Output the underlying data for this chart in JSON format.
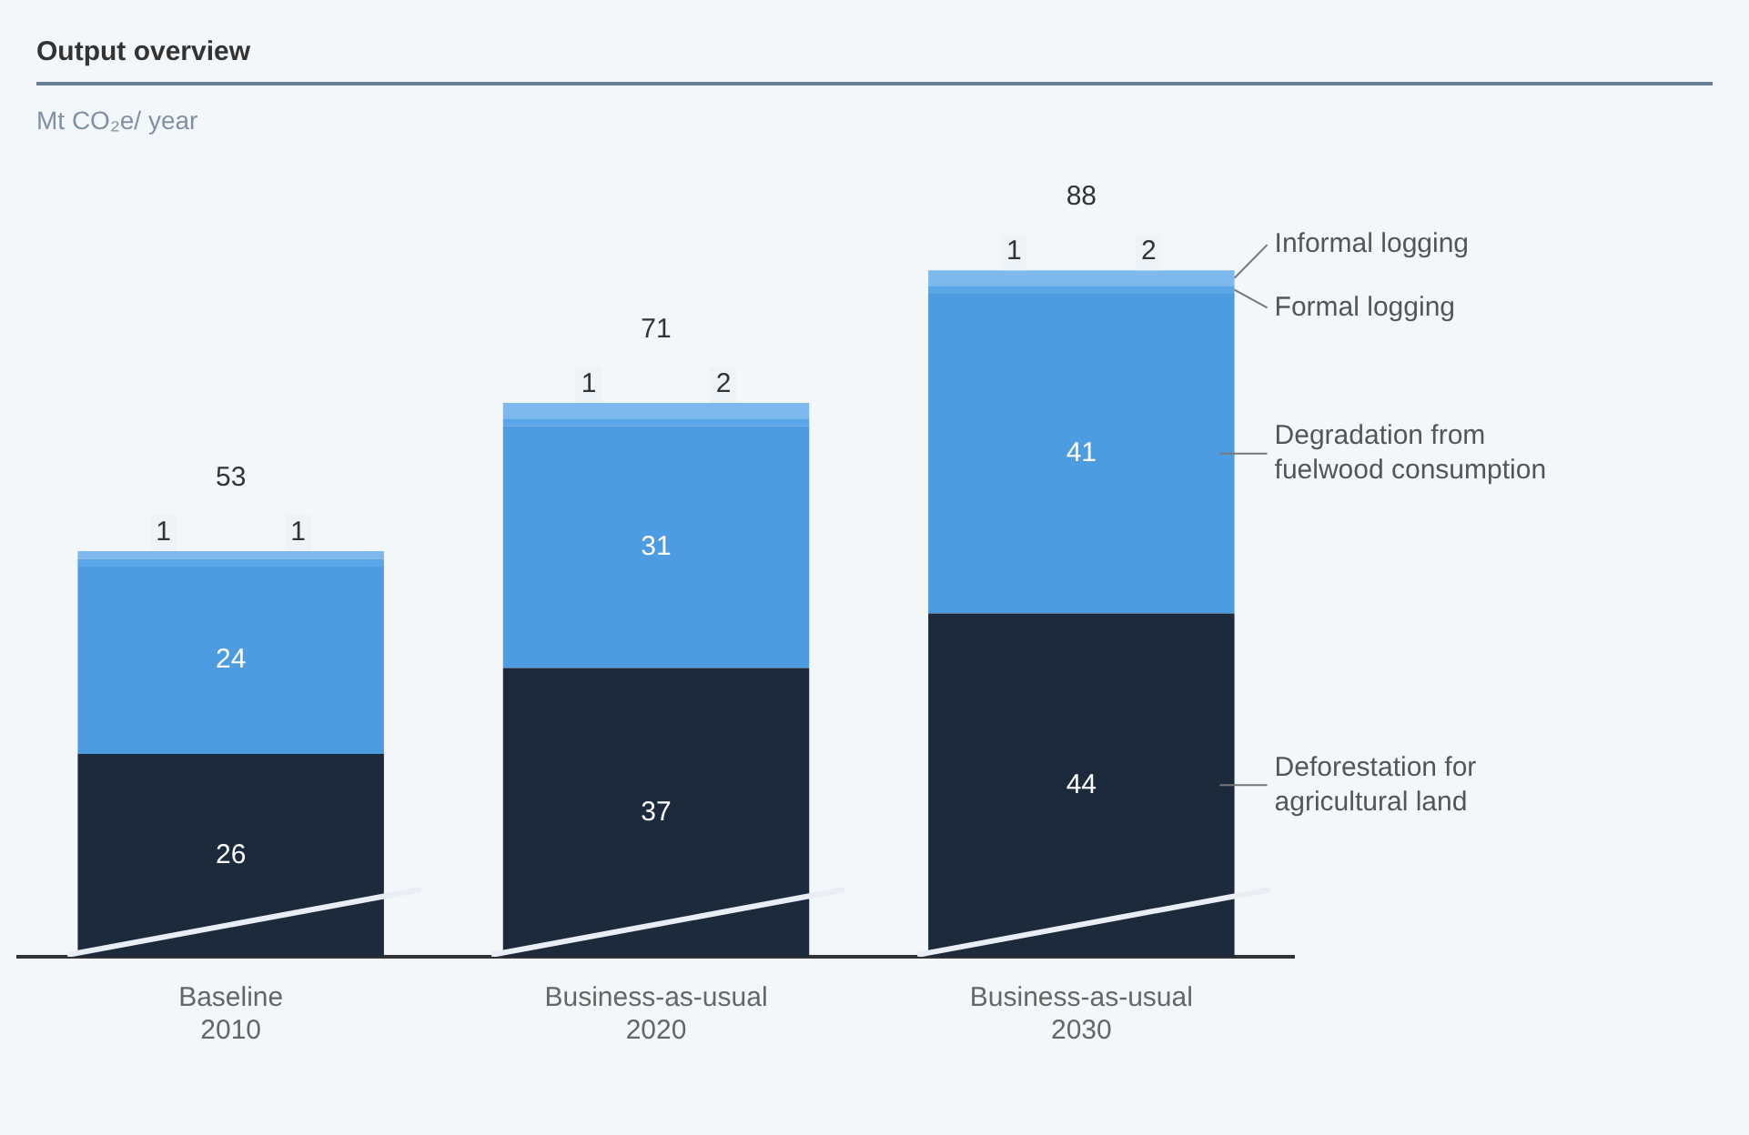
{
  "chart_data": {
    "type": "bar",
    "title": "Output overview",
    "subtitle": "Mt CO₂e/ year",
    "stacked": true,
    "data_labels": true,
    "grid": false,
    "legend": false,
    "categories": [
      "Baseline\n2010",
      "Business-as-usual\n2020",
      "Business-as-usual\n2030"
    ],
    "series": [
      {
        "name": "Deforestation for agricultural land",
        "color": "#1c2a3c",
        "values": [
          26,
          37,
          44
        ]
      },
      {
        "name": "Degradation from fuelwood consumption",
        "color": "#4d9be0",
        "values": [
          24,
          31,
          41
        ]
      },
      {
        "name": "Formal logging",
        "color": "#5aa6e6",
        "values": [
          1,
          1,
          1
        ]
      },
      {
        "name": "Informal logging",
        "color": "#7db9ec",
        "values": [
          1,
          2,
          2
        ]
      }
    ],
    "totals": [
      "53",
      "71",
      "88"
    ]
  }
}
